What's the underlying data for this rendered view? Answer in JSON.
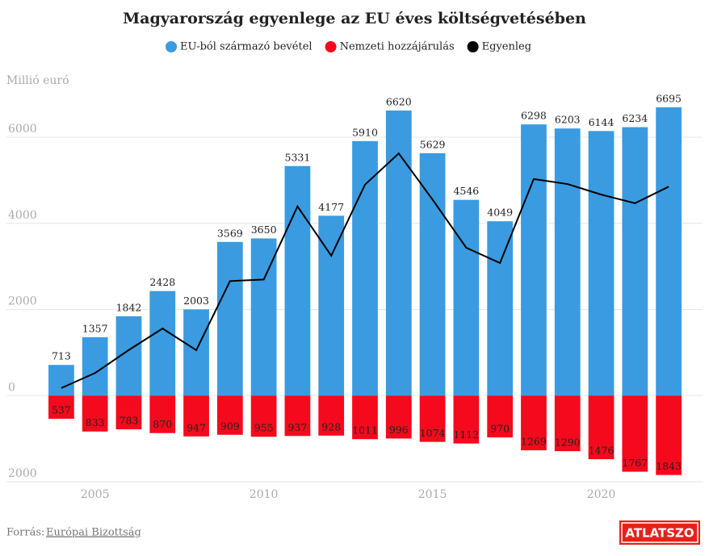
{
  "chart_data": {
    "type": "bar",
    "title": "Magyarország egyenlege az EU éves költségvetésében",
    "y_label": "Millió euró",
    "x": [
      2004,
      2005,
      2006,
      2007,
      2008,
      2009,
      2010,
      2011,
      2012,
      2013,
      2014,
      2015,
      2016,
      2017,
      2018,
      2019,
      2020,
      2021,
      2022
    ],
    "series": [
      {
        "name": "EU-ból származó bevétel",
        "color": "#3a9be0",
        "type": "bar",
        "values": [
          713,
          1357,
          1842,
          2428,
          2003,
          3569,
          3650,
          5331,
          4177,
          5910,
          6620,
          5629,
          4546,
          4049,
          6298,
          6203,
          6144,
          6234,
          6695
        ]
      },
      {
        "name": "Nemzeti hozzájárulás",
        "color": "#f5091c",
        "type": "bar",
        "values": [
          -537,
          -833,
          -783,
          -870,
          -947,
          -909,
          -955,
          -937,
          -928,
          -1011,
          -996,
          -1074,
          -1112,
          -970,
          -1269,
          -1290,
          -1476,
          -1767,
          -1843
        ],
        "value_labels": [
          "537",
          "833",
          "783",
          "870",
          "947",
          "909",
          "955",
          "937",
          "928",
          "1011",
          "996",
          "1074",
          "1112",
          "970",
          "1269",
          "1290",
          "1476",
          "1767",
          "1843"
        ]
      },
      {
        "name": "Egyenleg",
        "color": "#000000",
        "type": "line",
        "values": [
          176,
          524,
          1059,
          1558,
          1056,
          2660,
          2695,
          4394,
          3249,
          4899,
          5624,
          4555,
          3434,
          3079,
          5029,
          4913,
          4668,
          4467,
          4852
        ]
      }
    ],
    "xlim": [
      2003.5,
      2022.5
    ],
    "xticks": [
      2005,
      2010,
      2015,
      2020
    ],
    "ylim": [
      -2000,
      7500
    ],
    "yticks": [
      {
        "value": -2000,
        "label": "2000"
      },
      0,
      2000,
      4000,
      6000
    ],
    "grid": true
  },
  "source": {
    "prefix": "Forrás:",
    "link": "Európai Bizottság"
  },
  "logo": "ATLATSZO"
}
